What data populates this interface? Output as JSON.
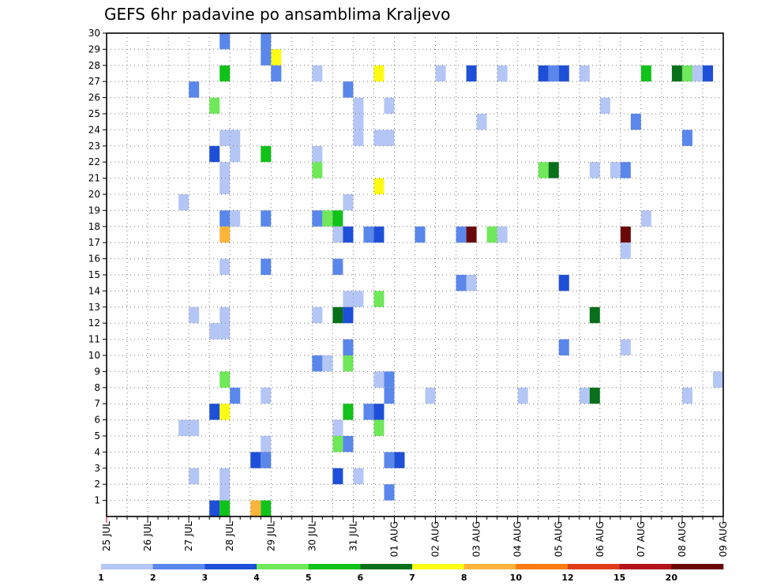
{
  "chart_data": {
    "type": "heatmap",
    "title": "GEFS 6hr padavine po ansamblima Kraljevo",
    "xlabel": "",
    "ylabel": "",
    "x_ticks": [
      "25 JUL",
      "26 JUL",
      "27 JUL",
      "28 JUL",
      "29 JUL",
      "30 JUL",
      "31 JUL",
      "01 AUG",
      "02 AUG",
      "03 AUG",
      "04 AUG",
      "05 AUG",
      "06 AUG",
      "07 AUG",
      "08 AUG",
      "09 AUG"
    ],
    "y_ticks": [
      "1",
      "2",
      "3",
      "4",
      "5",
      "6",
      "7",
      "8",
      "9",
      "10",
      "11",
      "12",
      "13",
      "14",
      "15",
      "16",
      "17",
      "18",
      "19",
      "20",
      "21",
      "22",
      "23",
      "24",
      "25",
      "26",
      "27",
      "28",
      "29",
      "30"
    ],
    "xlim": [
      0,
      60
    ],
    "ylim": [
      0,
      30
    ],
    "grid": true,
    "colorbar": {
      "labels": [
        "1",
        "2",
        "3",
        "4",
        "5",
        "6",
        "7",
        "8",
        "10",
        "12",
        "15",
        "20"
      ],
      "colors": [
        "#b4c6f5",
        "#5a87eb",
        "#1e4fd8",
        "#6fe85a",
        "#10c21a",
        "#08701a",
        "#fcfc14",
        "#fcb43c",
        "#fc7c14",
        "#e03c1a",
        "#b4141a",
        "#6a0808"
      ]
    },
    "cell_note": "each cell: [x_step (6h steps from 25 JUL 00Z), member (1-30), class index 0-11]",
    "cells": [
      [
        11,
        29,
        1
      ],
      [
        15,
        29,
        1
      ],
      [
        16,
        28,
        6
      ],
      [
        15,
        28,
        1
      ],
      [
        16,
        27,
        1
      ],
      [
        26,
        27,
        6
      ],
      [
        11,
        27,
        4
      ],
      [
        20,
        27,
        0
      ],
      [
        32,
        27,
        0
      ],
      [
        35,
        27,
        2
      ],
      [
        38,
        27,
        0
      ],
      [
        42,
        27,
        2
      ],
      [
        43,
        27,
        1
      ],
      [
        44,
        27,
        2
      ],
      [
        46,
        27,
        0
      ],
      [
        52,
        27,
        4
      ],
      [
        55,
        27,
        5
      ],
      [
        56,
        27,
        3
      ],
      [
        57,
        27,
        0
      ],
      [
        58,
        27,
        2
      ],
      [
        8,
        26,
        1
      ],
      [
        23,
        26,
        1
      ],
      [
        10,
        25,
        3
      ],
      [
        24,
        25,
        0
      ],
      [
        27,
        25,
        0
      ],
      [
        48,
        25,
        0
      ],
      [
        24,
        24,
        0
      ],
      [
        36,
        24,
        0
      ],
      [
        51,
        24,
        1
      ],
      [
        11,
        23,
        0
      ],
      [
        12,
        23,
        0
      ],
      [
        24,
        23,
        0
      ],
      [
        26,
        23,
        0
      ],
      [
        27,
        23,
        0
      ],
      [
        56,
        23,
        1
      ],
      [
        10,
        22,
        2
      ],
      [
        12,
        22,
        0
      ],
      [
        15,
        22,
        4
      ],
      [
        20,
        22,
        0
      ],
      [
        11,
        21,
        0
      ],
      [
        20,
        21,
        3
      ],
      [
        42,
        21,
        3
      ],
      [
        43,
        21,
        5
      ],
      [
        47,
        21,
        0
      ],
      [
        49,
        21,
        0
      ],
      [
        50,
        21,
        1
      ],
      [
        11,
        20,
        0
      ],
      [
        26,
        20,
        6
      ],
      [
        7,
        19,
        0
      ],
      [
        23,
        19,
        0
      ],
      [
        11,
        18,
        1
      ],
      [
        12,
        18,
        0
      ],
      [
        15,
        18,
        1
      ],
      [
        20,
        18,
        1
      ],
      [
        21,
        18,
        3
      ],
      [
        22,
        18,
        4
      ],
      [
        52,
        18,
        0
      ],
      [
        11,
        17,
        7
      ],
      [
        22,
        17,
        0
      ],
      [
        23,
        17,
        2
      ],
      [
        25,
        17,
        1
      ],
      [
        26,
        17,
        2
      ],
      [
        30,
        17,
        1
      ],
      [
        34,
        17,
        1
      ],
      [
        35,
        17,
        11
      ],
      [
        37,
        17,
        3
      ],
      [
        38,
        17,
        0
      ],
      [
        50,
        17,
        11
      ],
      [
        50,
        16,
        0
      ],
      [
        11,
        15,
        0
      ],
      [
        15,
        15,
        1
      ],
      [
        22,
        15,
        1
      ],
      [
        34,
        14,
        1
      ],
      [
        35,
        14,
        0
      ],
      [
        44,
        14,
        2
      ],
      [
        23,
        13,
        0
      ],
      [
        24,
        13,
        0
      ],
      [
        26,
        13,
        3
      ],
      [
        8,
        12,
        0
      ],
      [
        11,
        12,
        0
      ],
      [
        20,
        12,
        0
      ],
      [
        22,
        12,
        5
      ],
      [
        23,
        12,
        2
      ],
      [
        47,
        12,
        5
      ],
      [
        10,
        11,
        0
      ],
      [
        11,
        11,
        0
      ],
      [
        23,
        10,
        1
      ],
      [
        44,
        10,
        1
      ],
      [
        50,
        10,
        0
      ],
      [
        20,
        9,
        1
      ],
      [
        21,
        9,
        0
      ],
      [
        23,
        9,
        3
      ],
      [
        11,
        8,
        3
      ],
      [
        26,
        8,
        0
      ],
      [
        27,
        8,
        1
      ],
      [
        59,
        8,
        0
      ],
      [
        12,
        7,
        1
      ],
      [
        15,
        7,
        0
      ],
      [
        27,
        7,
        1
      ],
      [
        31,
        7,
        0
      ],
      [
        40,
        7,
        0
      ],
      [
        46,
        7,
        0
      ],
      [
        47,
        7,
        5
      ],
      [
        56,
        7,
        0
      ],
      [
        10,
        6,
        2
      ],
      [
        11,
        6,
        6
      ],
      [
        23,
        6,
        4
      ],
      [
        25,
        6,
        1
      ],
      [
        26,
        6,
        2
      ],
      [
        7,
        5,
        0
      ],
      [
        8,
        5,
        0
      ],
      [
        22,
        5,
        0
      ],
      [
        26,
        5,
        3
      ],
      [
        15,
        4,
        0
      ],
      [
        22,
        4,
        3
      ],
      [
        23,
        4,
        1
      ],
      [
        14,
        3,
        2
      ],
      [
        15,
        3,
        1
      ],
      [
        27,
        3,
        1
      ],
      [
        28,
        3,
        2
      ],
      [
        8,
        2,
        0
      ],
      [
        11,
        2,
        0
      ],
      [
        22,
        2,
        2
      ],
      [
        24,
        2,
        0
      ],
      [
        11,
        1,
        0
      ],
      [
        27,
        1,
        1
      ],
      [
        10,
        0,
        2
      ],
      [
        11,
        0,
        4
      ],
      [
        14,
        0,
        7
      ],
      [
        15,
        0,
        4
      ]
    ]
  }
}
